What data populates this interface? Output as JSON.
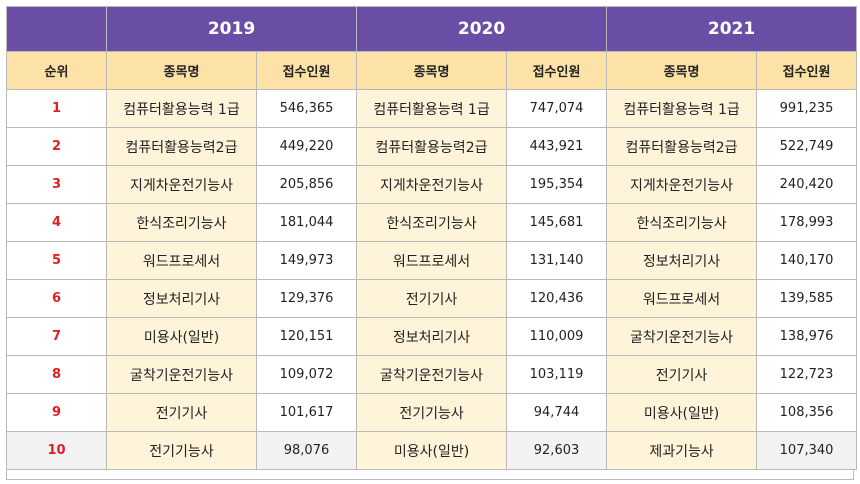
{
  "table": {
    "years": [
      "2019",
      "2020",
      "2021"
    ],
    "headers": {
      "rank": "순위",
      "name": "종목명",
      "count": "접수인원"
    },
    "rows": [
      {
        "rank": "1",
        "y2019": {
          "name": "컴퓨터활용능력 1급",
          "count": "546,365"
        },
        "y2020": {
          "name": "컴퓨터활용능력 1급",
          "count": "747,074"
        },
        "y2021": {
          "name": "컴퓨터활용능력 1급",
          "count": "991,235"
        }
      },
      {
        "rank": "2",
        "y2019": {
          "name": "컴퓨터활용능력2급",
          "count": "449,220"
        },
        "y2020": {
          "name": "컴퓨터활용능력2급",
          "count": "443,921"
        },
        "y2021": {
          "name": "컴퓨터활용능력2급",
          "count": "522,749"
        }
      },
      {
        "rank": "3",
        "y2019": {
          "name": "지게차운전기능사",
          "count": "205,856"
        },
        "y2020": {
          "name": "지게차운전기능사",
          "count": "195,354"
        },
        "y2021": {
          "name": "지게차운전기능사",
          "count": "240,420"
        }
      },
      {
        "rank": "4",
        "y2019": {
          "name": "한식조리기능사",
          "count": "181,044"
        },
        "y2020": {
          "name": "한식조리기능사",
          "count": "145,681"
        },
        "y2021": {
          "name": "한식조리기능사",
          "count": "178,993"
        }
      },
      {
        "rank": "5",
        "y2019": {
          "name": "워드프로세서",
          "count": "149,973"
        },
        "y2020": {
          "name": "워드프로세서",
          "count": "131,140"
        },
        "y2021": {
          "name": "정보처리기사",
          "count": "140,170"
        }
      },
      {
        "rank": "6",
        "y2019": {
          "name": "정보처리기사",
          "count": "129,376"
        },
        "y2020": {
          "name": "전기기사",
          "count": "120,436"
        },
        "y2021": {
          "name": "워드프로세서",
          "count": "139,585"
        }
      },
      {
        "rank": "7",
        "y2019": {
          "name": "미용사(일반)",
          "count": "120,151"
        },
        "y2020": {
          "name": "정보처리기사",
          "count": "110,009"
        },
        "y2021": {
          "name": "굴착기운전기능사",
          "count": "138,976"
        }
      },
      {
        "rank": "8",
        "y2019": {
          "name": "굴착기운전기능사",
          "count": "109,072"
        },
        "y2020": {
          "name": "굴착기운전기능사",
          "count": "103,119"
        },
        "y2021": {
          "name": "전기기사",
          "count": "122,723"
        }
      },
      {
        "rank": "9",
        "y2019": {
          "name": "전기기사",
          "count": "101,617"
        },
        "y2020": {
          "name": "전기기능사",
          "count": "94,744"
        },
        "y2021": {
          "name": "미용사(일반)",
          "count": "108,356"
        }
      },
      {
        "rank": "10",
        "y2019": {
          "name": "전기기능사",
          "count": "98,076"
        },
        "y2020": {
          "name": "미용사(일반)",
          "count": "92,603"
        },
        "y2021": {
          "name": "제과기능사",
          "count": "107,340"
        }
      }
    ]
  },
  "colors": {
    "year_header_bg": "#6a4ea6",
    "column_header_bg": "#fde2a7",
    "name_cell_bg": "#fff4d9",
    "rank_text": "#e02020"
  }
}
